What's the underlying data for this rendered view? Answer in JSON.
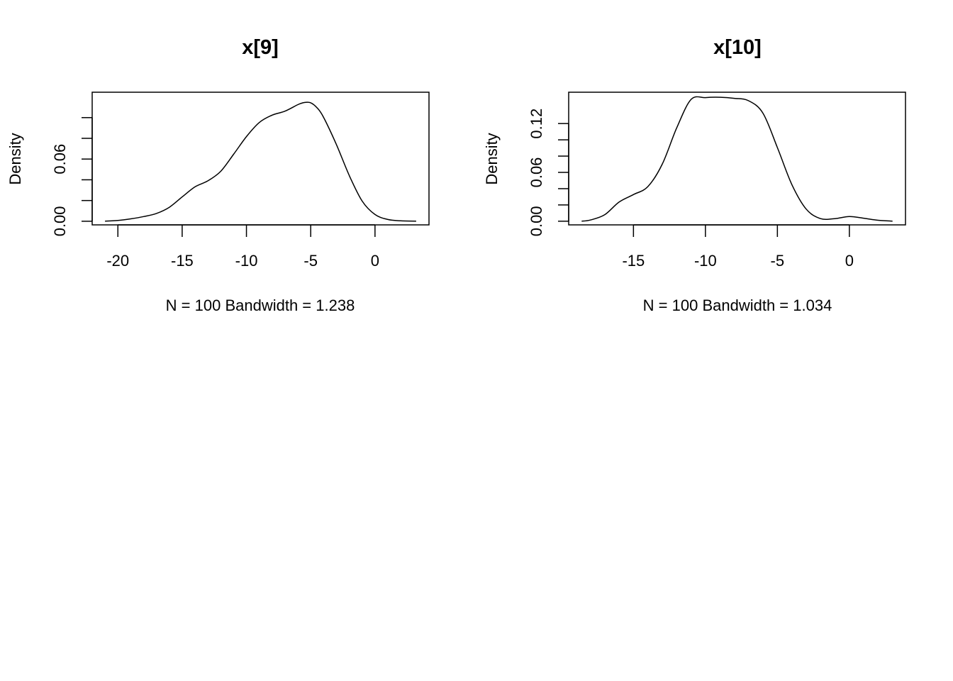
{
  "chart_data": [
    {
      "type": "line",
      "title": "x[9]",
      "xlabel": "N = 100   Bandwidth = 1.238",
      "ylabel": "Density",
      "xlim": [
        -22,
        4.2
      ],
      "ylim": [
        -0.0035,
        0.1245
      ],
      "x_ticks": [
        -20,
        -15,
        -10,
        -5,
        0
      ],
      "x_tick_labels": [
        "-20",
        "-15",
        "-10",
        "-5",
        "0"
      ],
      "y_ticks": [
        0,
        0.02,
        0.04,
        0.06,
        0.08,
        0.1
      ],
      "y_tick_labels": [
        "0.00",
        "",
        "",
        "0.06",
        "",
        ""
      ],
      "grid": false,
      "legend": "none",
      "color": "#000000",
      "series": [
        {
          "x": [
            -21.0,
            -20.0,
            -19.0,
            -18.0,
            -17.0,
            -16.0,
            -15.0,
            -14.0,
            -13.0,
            -12.0,
            -11.0,
            -10.0,
            -9.0,
            -8.0,
            -7.0,
            -6.0,
            -5.5,
            -5.0,
            -4.5,
            -4.0,
            -3.0,
            -2.0,
            -1.0,
            0.0,
            1.0,
            2.0,
            3.2
          ],
          "y": [
            0.0001,
            0.0008,
            0.0023,
            0.0045,
            0.0075,
            0.0135,
            0.0235,
            0.0332,
            0.039,
            0.0482,
            0.0646,
            0.0817,
            0.0953,
            0.1024,
            0.1062,
            0.1125,
            0.1146,
            0.1143,
            0.1094,
            0.1003,
            0.0739,
            0.0441,
            0.0195,
            0.0065,
            0.0017,
            0.0004,
            0.0001
          ]
        }
      ]
    },
    {
      "type": "line",
      "title": "x[10]",
      "xlabel": "N = 100   Bandwidth = 1.034",
      "ylabel": "Density",
      "xlim": [
        -19.5,
        3.9
      ],
      "ylim": [
        -0.0045,
        0.1585
      ],
      "x_ticks": [
        -15,
        -10,
        -5,
        0
      ],
      "x_tick_labels": [
        "-15",
        "-10",
        "-5",
        "0"
      ],
      "y_ticks": [
        0,
        0.02,
        0.04,
        0.06,
        0.08,
        0.1,
        0.12
      ],
      "y_tick_labels": [
        "0.00",
        "",
        "",
        "0.06",
        "",
        "",
        "0.12"
      ],
      "grid": false,
      "legend": "none",
      "color": "#000000",
      "series": [
        {
          "x": [
            -18.6,
            -18.0,
            -17.0,
            -16.0,
            -15.0,
            -14.0,
            -13.0,
            -12.0,
            -11.0,
            -10.0,
            -9.0,
            -8.0,
            -7.0,
            -6.0,
            -5.0,
            -4.0,
            -3.0,
            -2.0,
            -1.0,
            0.0,
            1.0,
            2.0,
            3.0
          ],
          "y": [
            0.0001,
            0.0014,
            0.0079,
            0.0235,
            0.0327,
            0.0425,
            0.07,
            0.1144,
            0.1495,
            0.1519,
            0.1523,
            0.151,
            0.148,
            0.1327,
            0.0905,
            0.0453,
            0.0149,
            0.0032,
            0.0032,
            0.0058,
            0.0037,
            0.0012,
            0.0001
          ]
        }
      ]
    }
  ]
}
